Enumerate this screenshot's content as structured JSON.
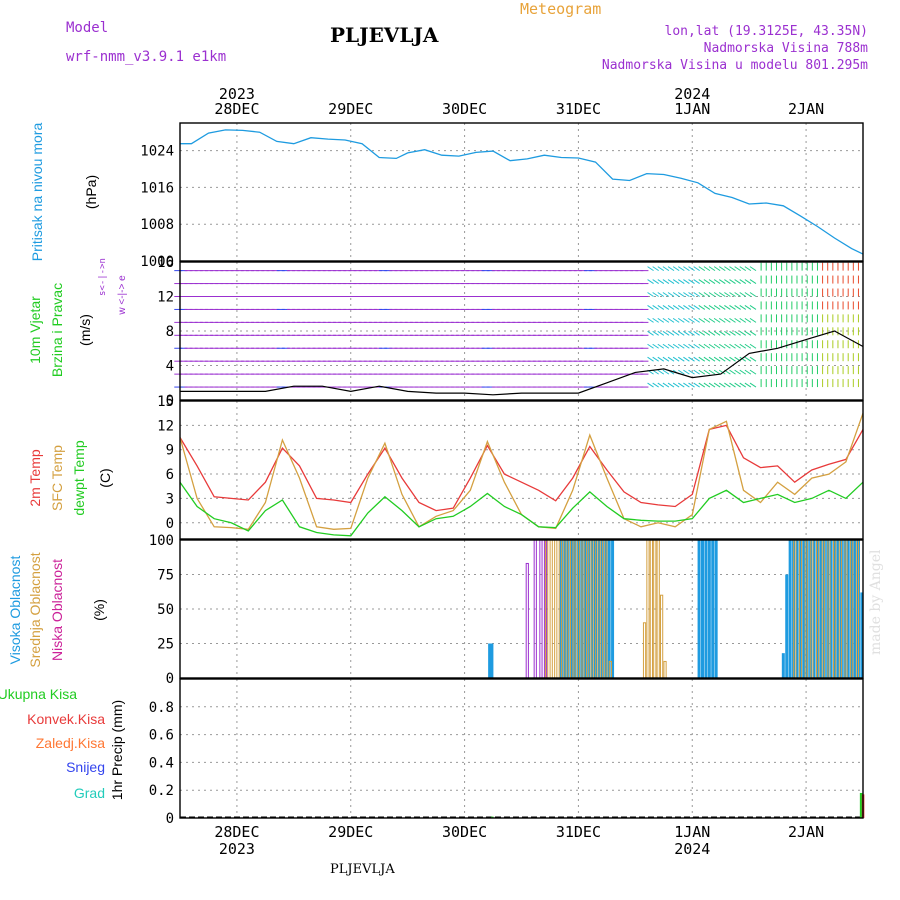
{
  "header": {
    "model_label": "Model",
    "model_name": "wrf-nmm_v3.9.1  e1km",
    "title": "PLJEVLJA",
    "meteogram_label": "Meteogram",
    "lonlat": "lon,lat (19.3125E, 43.35N)",
    "altitude": "Nadmorska Visina 788m",
    "model_altitude": "Nadmorska Visina u modelu 801.295m",
    "bottom_title": "PLJEVLJA",
    "watermark": "made by Angel"
  },
  "colors": {
    "purple": "#9b30d0",
    "orange": "#e8a33a",
    "sky": "#1e9be0",
    "red": "#e83a3a",
    "green": "#22cc22",
    "tan": "#d4a040",
    "magenta": "#cc2299",
    "blue": "#3344ee",
    "teal": "#22ccbb"
  },
  "chart_data": [
    {
      "type": "line",
      "ylabel_main": "Pritisak na nivou mora",
      "unit": "(hPa)",
      "yticks": [
        1000,
        1008,
        1016,
        1024
      ],
      "ylim": [
        1000,
        1030
      ],
      "x_days": [
        0,
        0.1,
        0.25,
        0.4,
        0.55,
        0.7,
        0.85,
        1.0,
        1.15,
        1.3,
        1.45,
        1.6,
        1.75,
        1.9,
        2.0,
        2.15,
        2.3,
        2.45,
        2.6,
        2.75,
        2.9,
        3.05,
        3.2,
        3.35,
        3.5,
        3.65,
        3.8,
        3.95,
        4.1,
        4.25,
        4.4,
        4.55,
        4.7,
        4.85,
        5.0,
        5.15,
        5.3,
        5.45,
        5.6,
        5.75,
        5.9,
        6.0
      ],
      "series": [
        {
          "values": [
            1025.5,
            1025.5,
            1027.8,
            1028.5,
            1028.4,
            1028.0,
            1026.0,
            1025.5,
            1026.8,
            1026.5,
            1026.3,
            1025.5,
            1022.5,
            1022.3,
            1023.5,
            1024.2,
            1023.0,
            1022.8,
            1023.6,
            1023.9,
            1021.8,
            1022.2,
            1023.0,
            1022.5,
            1022.4,
            1021.5,
            1017.8,
            1017.5,
            1019.0,
            1018.8,
            1018.0,
            1017.0,
            1014.7,
            1013.8,
            1012.4,
            1012.6,
            1012.0,
            1009.8,
            1007.5,
            1005.0,
            1002.7,
            1001.5
          ]
        }
      ]
    },
    {
      "type": "line",
      "ylabel_main": "10m Vjetar",
      "ylabel_sub": "Brzina i Pravac",
      "unit": "(m/s)",
      "compass": "w <-|-> e",
      "compass_ns": "s<-|->n",
      "yticks": [
        0,
        4,
        8,
        12,
        16
      ],
      "ylim": [
        0,
        16
      ],
      "x_days": [
        0,
        0.25,
        0.5,
        0.75,
        1.0,
        1.25,
        1.5,
        1.75,
        2.0,
        2.25,
        2.5,
        2.75,
        3.0,
        3.25,
        3.5,
        3.75,
        4.0,
        4.25,
        4.5,
        4.75,
        5.0,
        5.25,
        5.5,
        5.75,
        6.0
      ],
      "series": [
        {
          "values": [
            1.0,
            1.0,
            1.0,
            1.0,
            1.6,
            1.6,
            1.0,
            1.6,
            1.0,
            0.8,
            0.8,
            0.6,
            0.8,
            0.8,
            0.8,
            2.0,
            3.2,
            3.6,
            2.6,
            3.0,
            5.4,
            6.0,
            7.0,
            8.0,
            6.2
          ]
        }
      ]
    },
    {
      "type": "line",
      "ylabel_main": "2m Temp",
      "ylabel_sfc": "SFC Temp",
      "ylabel_dew": "dewpt Temp",
      "unit": "(C)",
      "yticks": [
        0,
        3,
        6,
        9,
        12,
        15
      ],
      "ylim": [
        -2,
        15
      ],
      "x_days": [
        0,
        0.15,
        0.3,
        0.45,
        0.6,
        0.75,
        0.9,
        1.05,
        1.2,
        1.35,
        1.5,
        1.65,
        1.8,
        1.95,
        2.1,
        2.25,
        2.4,
        2.55,
        2.7,
        2.85,
        3.0,
        3.15,
        3.3,
        3.45,
        3.6,
        3.75,
        3.9,
        4.05,
        4.2,
        4.35,
        4.5,
        4.65,
        4.8,
        4.95,
        5.1,
        5.25,
        5.4,
        5.55,
        5.7,
        5.85,
        6.0
      ],
      "series": [
        {
          "name": "2m Temp",
          "values": [
            10.5,
            7.0,
            3.2,
            3.0,
            2.8,
            5.0,
            9.2,
            7.0,
            3.0,
            2.8,
            2.5,
            6.0,
            9.2,
            5.5,
            2.5,
            1.5,
            1.8,
            5.5,
            9.5,
            6.0,
            5.0,
            4.0,
            2.7,
            5.5,
            9.4,
            6.5,
            3.8,
            2.5,
            2.2,
            2.0,
            3.5,
            11.5,
            12.0,
            8.0,
            6.8,
            7.0,
            5.0,
            6.5,
            7.2,
            7.8,
            11.5
          ]
        },
        {
          "name": "SFC Temp",
          "values": [
            10.5,
            3.0,
            -0.5,
            -0.6,
            -0.8,
            2.5,
            10.2,
            5.5,
            -0.5,
            -0.8,
            -0.7,
            5.5,
            9.8,
            3.5,
            -0.5,
            0.8,
            1.5,
            4.0,
            10.0,
            5.0,
            1.0,
            -0.5,
            -0.7,
            4.0,
            10.8,
            5.5,
            0.5,
            -0.5,
            0.0,
            -0.5,
            1.0,
            11.5,
            12.5,
            4.0,
            2.5,
            5.0,
            3.5,
            5.5,
            6.0,
            7.5,
            13.5
          ]
        },
        {
          "name": "dewpt Temp",
          "values": [
            5.0,
            2.0,
            0.5,
            0.0,
            -1.0,
            1.5,
            2.8,
            -0.5,
            -1.2,
            -1.5,
            -1.6,
            1.2,
            3.2,
            1.5,
            -0.5,
            0.5,
            0.8,
            2.0,
            3.6,
            2.0,
            1.0,
            -0.5,
            -0.6,
            1.8,
            3.8,
            2.0,
            0.5,
            0.3,
            0.2,
            0.2,
            0.5,
            3.0,
            4.0,
            2.5,
            3.0,
            3.5,
            2.5,
            3.0,
            4.0,
            3.0,
            5.0
          ]
        }
      ]
    },
    {
      "type": "bar",
      "ylabel_high": "Visoka Oblacnost",
      "ylabel_mid": "Srednja Oblacnost",
      "ylabel_low": "Niska Oblacnost",
      "unit": "(%)",
      "yticks": [
        0,
        25,
        50,
        75,
        100
      ],
      "ylim": [
        0,
        100
      ],
      "series": [
        {
          "name": "Visoka Oblacnost",
          "points": [
            [
              2.72,
              25
            ],
            [
              2.74,
              25
            ],
            [
              3.35,
              100
            ],
            [
              3.38,
              100
            ],
            [
              3.41,
              100
            ],
            [
              3.44,
              100
            ],
            [
              3.47,
              100
            ],
            [
              3.5,
              100
            ],
            [
              3.53,
              100
            ],
            [
              3.56,
              100
            ],
            [
              3.59,
              100
            ],
            [
              3.62,
              100
            ],
            [
              3.65,
              100
            ],
            [
              3.68,
              100
            ],
            [
              3.71,
              100
            ],
            [
              3.74,
              100
            ],
            [
              3.77,
              100
            ],
            [
              3.8,
              100
            ],
            [
              4.56,
              100
            ],
            [
              4.59,
              100
            ],
            [
              4.62,
              100
            ],
            [
              4.65,
              100
            ],
            [
              4.68,
              100
            ],
            [
              4.71,
              100
            ],
            [
              5.3,
              18
            ],
            [
              5.33,
              75
            ],
            [
              5.36,
              100
            ],
            [
              5.39,
              100
            ],
            [
              5.42,
              100
            ],
            [
              5.45,
              100
            ],
            [
              5.48,
              100
            ],
            [
              5.51,
              100
            ],
            [
              5.54,
              100
            ],
            [
              5.57,
              100
            ],
            [
              5.6,
              100
            ],
            [
              5.63,
              100
            ],
            [
              5.66,
              100
            ],
            [
              5.69,
              100
            ],
            [
              5.72,
              100
            ],
            [
              5.75,
              100
            ],
            [
              5.78,
              100
            ],
            [
              5.81,
              100
            ],
            [
              5.84,
              100
            ],
            [
              5.87,
              100
            ],
            [
              5.9,
              100
            ],
            [
              5.93,
              100
            ],
            [
              5.96,
              100
            ],
            [
              5.99,
              62
            ]
          ]
        },
        {
          "name": "Srednja Oblacnost",
          "points": [
            [
              3.22,
              100
            ],
            [
              3.26,
              100
            ],
            [
              3.3,
              100
            ],
            [
              3.34,
              100
            ],
            [
              3.38,
              100
            ],
            [
              3.42,
              100
            ],
            [
              3.46,
              100
            ],
            [
              3.5,
              100
            ],
            [
              3.54,
              100
            ],
            [
              3.58,
              100
            ],
            [
              3.62,
              100
            ],
            [
              3.66,
              100
            ],
            [
              3.7,
              100
            ],
            [
              3.74,
              100
            ],
            [
              3.78,
              12
            ],
            [
              4.08,
              40
            ],
            [
              4.11,
              100
            ],
            [
              4.14,
              100
            ],
            [
              4.17,
              100
            ],
            [
              4.2,
              100
            ],
            [
              4.23,
              60
            ],
            [
              4.26,
              12
            ],
            [
              5.4,
              100
            ],
            [
              5.45,
              100
            ],
            [
              5.5,
              100
            ],
            [
              5.55,
              100
            ],
            [
              5.6,
              100
            ],
            [
              5.65,
              100
            ],
            [
              5.7,
              100
            ],
            [
              5.75,
              100
            ],
            [
              5.8,
              100
            ],
            [
              5.85,
              100
            ],
            [
              5.9,
              100
            ],
            [
              5.95,
              100
            ]
          ]
        },
        {
          "name": "Niska Oblacnost",
          "points": [
            [
              3.05,
              83
            ],
            [
              3.12,
              100
            ],
            [
              3.17,
              100
            ],
            [
              3.21,
              100
            ]
          ]
        }
      ]
    },
    {
      "type": "bar",
      "legend": [
        "Ukupna  Kisa",
        "Konvek.Kisa",
        "Zaledj.Kisa",
        "Snijeg",
        "Grad"
      ],
      "ylabel": "1hr Precip (mm)",
      "yticks": [
        0,
        0.2,
        0.4,
        0.6,
        0.8
      ],
      "ylim": [
        0,
        1.0
      ],
      "series": [
        {
          "name": "Ukupna  Kisa",
          "points": [
            [
              2.75,
              0.01
            ],
            [
              5.99,
              0.18
            ]
          ]
        },
        {
          "name": "Konvek.Kisa",
          "points": [
            [
              5.99,
              0.17
            ]
          ]
        }
      ]
    }
  ],
  "time_axis": {
    "day_offsets": [
      0.5,
      1.5,
      2.5,
      3.5,
      4.5,
      5.5
    ],
    "day_labels": [
      "28DEC",
      "29DEC",
      "30DEC",
      "31DEC",
      "1JAN",
      "2JAN"
    ],
    "year_labels": [
      {
        "offset": 0.5,
        "label": "2023"
      },
      {
        "offset": 4.5,
        "label": "2024"
      }
    ]
  }
}
